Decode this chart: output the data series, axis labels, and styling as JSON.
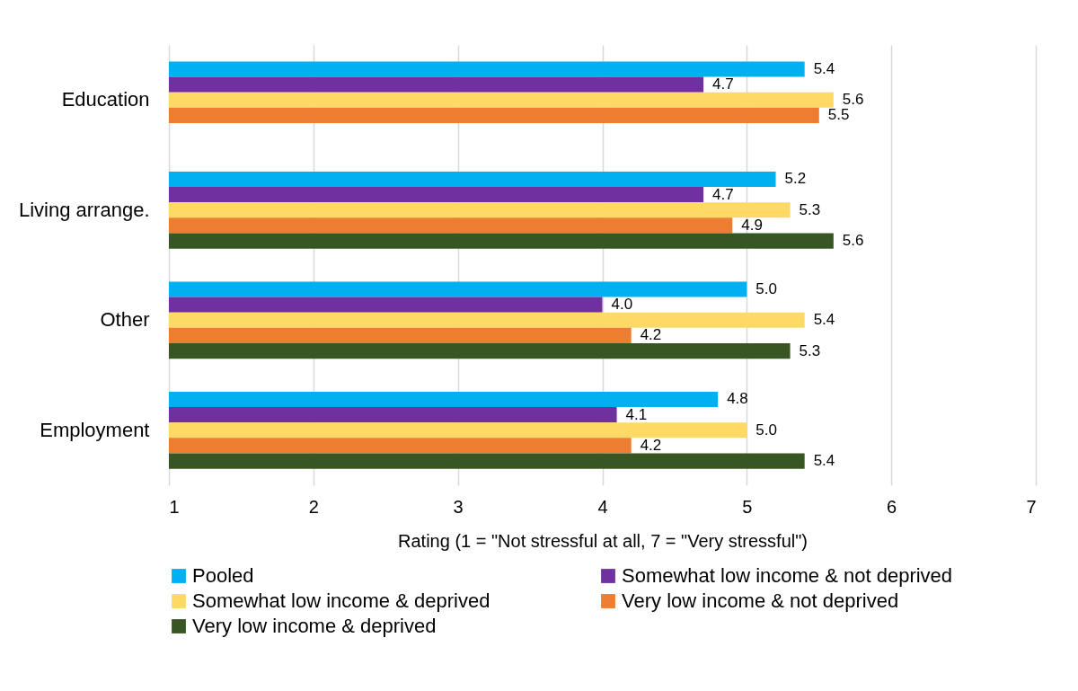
{
  "chart_data": {
    "type": "bar",
    "orientation": "horizontal",
    "xlabel": "Rating (1 = \"Not stressful at all, 7 = \"Very stressful\")",
    "categories": [
      "Education",
      "Living arrange.",
      "Other",
      "Employment"
    ],
    "series": [
      {
        "name": "Pooled",
        "color": "#00b0f0",
        "values": [
          5.4,
          5.2,
          5.0,
          4.8
        ],
        "value_labels": [
          "5.4",
          "5.2",
          "5.0",
          "4.8"
        ]
      },
      {
        "name": "Somewhat low income & not deprived",
        "color": "#7030a0",
        "values": [
          4.7,
          4.7,
          4.0,
          4.1
        ],
        "value_labels": [
          "4.7",
          "4.7",
          "4.0",
          "4.1"
        ]
      },
      {
        "name": "Somewhat low income & deprived",
        "color": "#ffd966",
        "values": [
          5.6,
          5.3,
          5.4,
          5.0
        ],
        "value_labels": [
          "5.6",
          "5.3",
          "5.4",
          "5.0"
        ]
      },
      {
        "name": "Very low income & not deprived",
        "color": "#ed7d31",
        "values": [
          5.5,
          4.9,
          4.2,
          4.2
        ],
        "value_labels": [
          "5.5",
          "4.9",
          "4.2",
          "4.2"
        ]
      },
      {
        "name": "Very low income & deprived",
        "color": "#375623",
        "values": [
          null,
          5.6,
          5.3,
          5.4
        ],
        "value_labels": [
          null,
          "5.6",
          "5.3",
          "5.4"
        ]
      }
    ],
    "xlim": [
      1,
      7
    ],
    "xticks": [
      1,
      2,
      3,
      4,
      5,
      6,
      7
    ],
    "grid": "x",
    "legend": "bottom"
  }
}
